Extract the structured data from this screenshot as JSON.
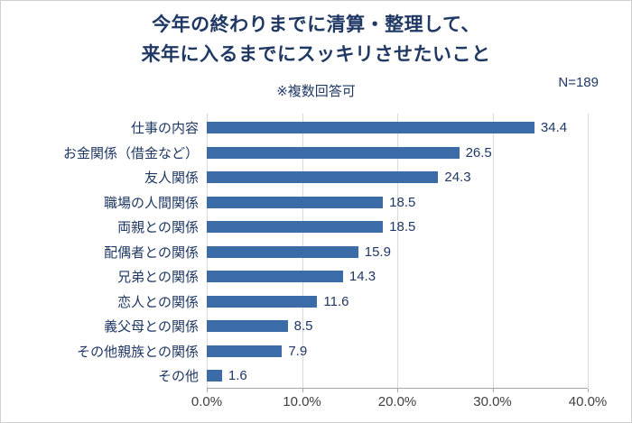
{
  "header": {
    "title_line1": "今年の終わりまでに清算・整理して、",
    "title_line2": "来年に入るまでにスッキリさせたいこと",
    "note": "※複数回答可",
    "n_label": "N=189"
  },
  "chart_data": {
    "type": "bar",
    "orientation": "horizontal",
    "title": "今年の終わりまでに清算・整理して、来年に入るまでにスッキリさせたいこと",
    "subtitle": "※複数回答可",
    "sample_size": "N=189",
    "categories": [
      "仕事の内容",
      "お金関係（借金など）",
      "友人関係",
      "職場の人間関係",
      "両親との関係",
      "配偶者との関係",
      "兄弟との関係",
      "恋人との関係",
      "義父母との関係",
      "その他親族との関係",
      "その他"
    ],
    "values": [
      34.4,
      26.5,
      24.3,
      18.5,
      18.5,
      15.9,
      14.3,
      11.6,
      8.5,
      7.9,
      1.6
    ],
    "xlim": [
      0,
      40
    ],
    "x_ticks": [
      "0.0%",
      "10.0%",
      "20.0%",
      "30.0%",
      "40.0%"
    ],
    "x_tick_values": [
      0,
      10,
      20,
      30,
      40
    ],
    "grid": true,
    "legend": "none",
    "bar_color": "#3C6CA8",
    "title_color": "#1F3864",
    "label_color": "#1F3864",
    "axis_text_color": "#404040",
    "gridline_color": "#D9D9D9",
    "axis_line_color": "#A6A6A6"
  }
}
